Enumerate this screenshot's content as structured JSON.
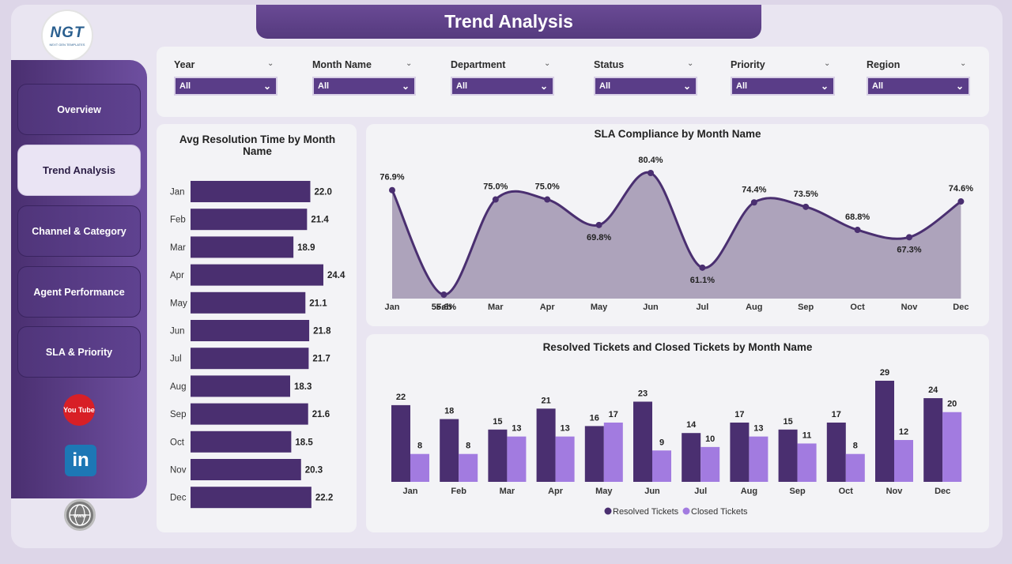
{
  "logo": {
    "mark": "NGT",
    "sub": "NEXT GEN TEMPLATES"
  },
  "page_title": "Trend Analysis",
  "nav": [
    {
      "label": "Overview",
      "active": false
    },
    {
      "label": "Trend Analysis",
      "active": true
    },
    {
      "label": "Channel & Category",
      "active": false
    },
    {
      "label": "Agent Performance",
      "active": false
    },
    {
      "label": "SLA & Priority",
      "active": false
    }
  ],
  "social": {
    "youtube": "You Tube",
    "linkedin": "in"
  },
  "filters": [
    {
      "label": "Year",
      "value": "All"
    },
    {
      "label": "Month Name",
      "value": "All"
    },
    {
      "label": "Department",
      "value": "All"
    },
    {
      "label": "Status",
      "value": "All"
    },
    {
      "label": "Priority",
      "value": "All"
    },
    {
      "label": "Region",
      "value": "All"
    }
  ],
  "colors": {
    "primary": "#553a7e",
    "bar_dark": "#4a2f70",
    "bar_light": "#a27be0",
    "area_fill": "#ada3bb",
    "line": "#4a2f70"
  },
  "chart_data": [
    {
      "type": "bar",
      "orientation": "horizontal",
      "title": "Avg Resolution Time by Month Name",
      "categories": [
        "Jan",
        "Feb",
        "Mar",
        "Apr",
        "May",
        "Jun",
        "Jul",
        "Aug",
        "Sep",
        "Oct",
        "Nov",
        "Dec"
      ],
      "values": [
        22.0,
        21.4,
        18.9,
        24.4,
        21.1,
        21.8,
        21.7,
        18.3,
        21.6,
        18.5,
        20.3,
        22.2
      ],
      "labels": [
        "22.0",
        "21.4",
        "18.9",
        "24.4",
        "21.1",
        "21.8",
        "21.7",
        "18.3",
        "21.6",
        "18.5",
        "20.3",
        "22.2"
      ],
      "xlim": [
        0,
        24.4
      ]
    },
    {
      "type": "area",
      "title": "SLA Compliance by Month Name",
      "categories": [
        "Jan",
        "Feb",
        "Mar",
        "Apr",
        "May",
        "Jun",
        "Jul",
        "Aug",
        "Sep",
        "Oct",
        "Nov",
        "Dec"
      ],
      "values": [
        76.9,
        55.6,
        75.0,
        75.0,
        69.8,
        80.4,
        61.1,
        74.4,
        73.5,
        68.8,
        67.3,
        74.6
      ],
      "labels": [
        "76.9%",
        "55.6%",
        "75.0%",
        "75.0%",
        "69.8%",
        "80.4%",
        "61.1%",
        "74.4%",
        "73.5%",
        "68.8%",
        "67.3%",
        "74.6%"
      ],
      "ylim": [
        55.6,
        80.4
      ]
    },
    {
      "type": "bar",
      "title": "Resolved Tickets and Closed Tickets by Month Name",
      "categories": [
        "Jan",
        "Feb",
        "Mar",
        "Apr",
        "May",
        "Jun",
        "Jul",
        "Aug",
        "Sep",
        "Oct",
        "Nov",
        "Dec"
      ],
      "series": [
        {
          "name": "Resolved Tickets",
          "values": [
            22,
            18,
            15,
            21,
            16,
            23,
            14,
            17,
            15,
            17,
            29,
            24
          ]
        },
        {
          "name": "Closed Tickets",
          "values": [
            8,
            8,
            13,
            13,
            17,
            9,
            10,
            13,
            11,
            8,
            12,
            20
          ]
        }
      ],
      "legend": "bottom",
      "ylim": [
        0,
        29
      ]
    }
  ]
}
